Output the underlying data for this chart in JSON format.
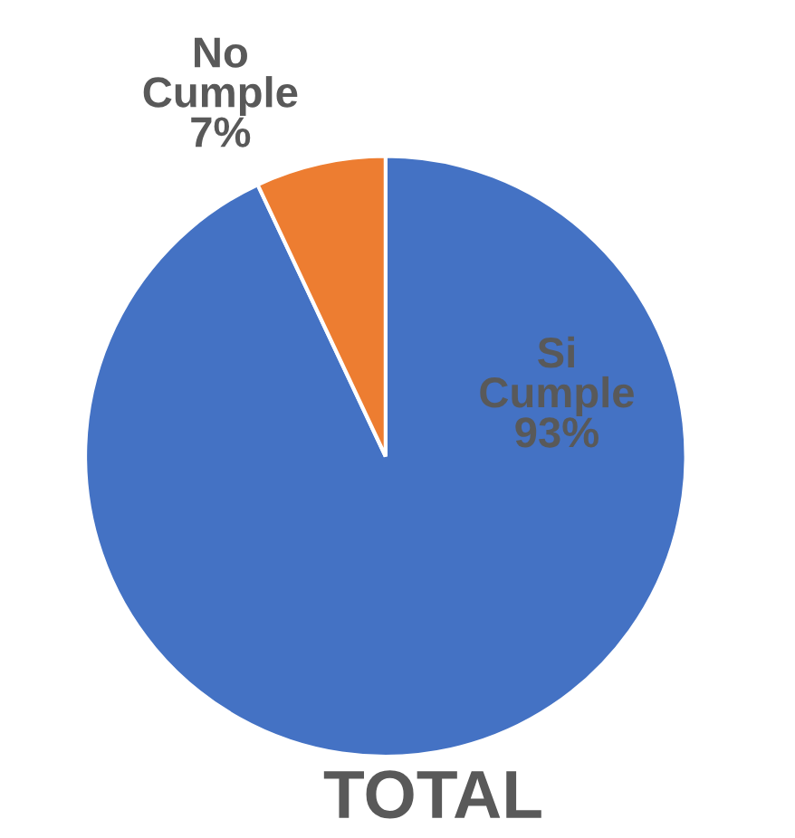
{
  "chart_data": {
    "type": "pie",
    "title": "TOTAL",
    "categories": [
      "Si Cumple",
      "No Cumple"
    ],
    "values": [
      93,
      7
    ],
    "value_labels": [
      "93%",
      "7%"
    ],
    "colors": [
      "#4472c4",
      "#ed7d31"
    ],
    "legend": false
  }
}
